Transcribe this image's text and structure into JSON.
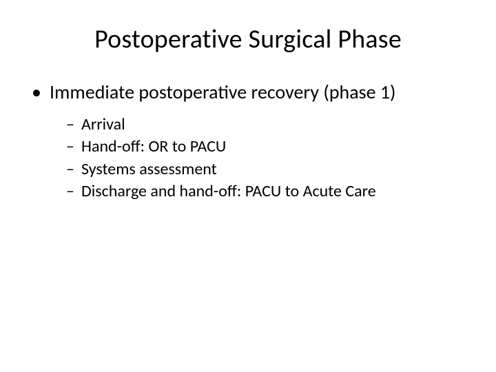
{
  "title": "Postoperative Surgical Phase",
  "bullets": {
    "l1": "Immediate postoperative recovery (phase 1)",
    "l2": [
      "Arrival",
      "Hand-off: OR to PACU",
      "Systems assessment",
      "Discharge and hand-off: PACU to Acute Care"
    ]
  },
  "colors": {
    "text": "#000000",
    "background": "#ffffff"
  },
  "typography": {
    "title_fontsize": 38,
    "level1_fontsize": 28,
    "level2_fontsize": 24,
    "font_family": "Calibri"
  }
}
